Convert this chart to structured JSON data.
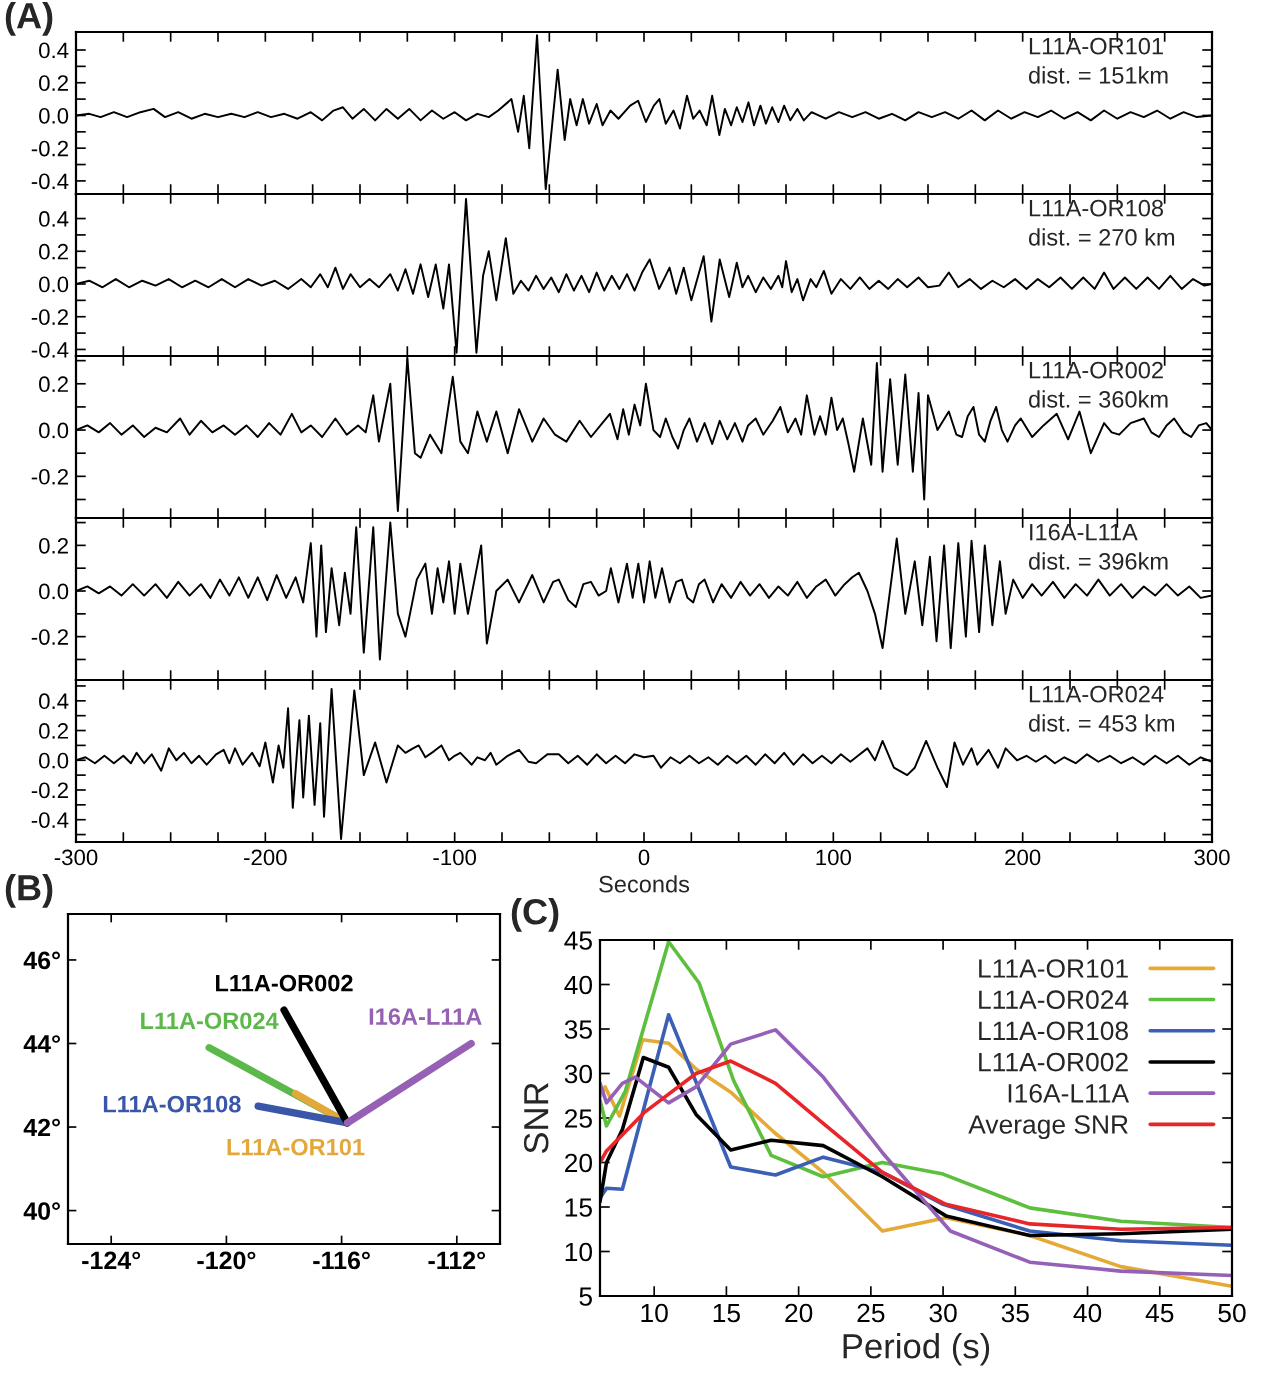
{
  "chart_data": [
    {
      "type": "line",
      "title": "(A)",
      "color": "#000000",
      "xlim": [
        -300,
        300
      ],
      "ylim": [
        -0.48,
        0.51
      ],
      "tick_labels": "y",
      "xticks": [
        -300,
        {
          "value": -275,
          "label": null
        },
        {
          "value": -250,
          "label": null
        },
        {
          "value": -225,
          "label": null
        },
        -200,
        {
          "value": -175,
          "label": null
        },
        {
          "value": -150,
          "label": null
        },
        {
          "value": -125,
          "label": null
        },
        -100,
        {
          "value": -75,
          "label": null
        },
        {
          "value": -50,
          "label": null
        },
        {
          "value": -25,
          "label": null
        },
        0,
        {
          "value": 25,
          "label": null
        },
        {
          "value": 50,
          "label": null
        },
        {
          "value": 75,
          "label": null
        },
        100,
        {
          "value": 125,
          "label": null
        },
        {
          "value": 150,
          "label": null
        },
        {
          "value": 175,
          "label": null
        },
        200,
        {
          "value": 225,
          "label": null
        },
        {
          "value": 250,
          "label": null
        },
        {
          "value": 275,
          "label": null
        },
        300
      ],
      "yticks": [
        -0.4,
        {
          "value": -0.3,
          "label": null
        },
        -0.2,
        {
          "value": -0.1,
          "label": null
        },
        {
          "value": 0,
          "label": "0.0"
        },
        {
          "value": 0.1,
          "label": null
        },
        0.2,
        {
          "value": 0.3,
          "label": null
        },
        0.4
      ],
      "annotations": [
        "L11A-OR101",
        "dist. = 151km"
      ],
      "x": [
        -300,
        -293,
        -287,
        -280,
        -273,
        -266,
        -259,
        -253,
        -246,
        -239,
        -232,
        -225,
        -218,
        -211,
        -204,
        -197,
        -190,
        -183,
        -176,
        -170,
        -164,
        -159,
        -154,
        -148,
        -142,
        -136,
        -130,
        -124,
        -118,
        -112,
        -106,
        -100,
        -94,
        -88,
        -82,
        -77,
        -70,
        -66.5,
        -63.5,
        -60.6,
        -56.5,
        -51.9,
        -45.6,
        -41.9,
        -39,
        -35.6,
        -32.3,
        -29,
        -25,
        -21.9,
        -17.7,
        -13.5,
        -7.3,
        -3.1,
        1,
        5.2,
        8.1,
        11.5,
        15.6,
        19,
        22.7,
        26,
        29.4,
        33.1,
        36,
        39.8,
        42.7,
        46,
        49,
        52,
        55.2,
        58.1,
        61.5,
        64.4,
        67.7,
        71,
        74,
        77.3,
        81,
        84.4,
        88.5,
        96,
        103,
        110,
        117,
        124,
        131,
        138,
        145,
        152,
        159,
        166,
        173,
        180,
        187,
        194,
        201,
        208,
        215,
        222,
        229,
        236,
        243,
        250,
        257,
        264,
        271,
        278,
        285,
        292,
        300
      ],
      "values": [
        0.0,
        0.01,
        -0.01,
        0.02,
        -0.01,
        0.02,
        0.04,
        -0.01,
        0.02,
        -0.02,
        0.01,
        -0.01,
        0.01,
        -0.01,
        0.02,
        -0.01,
        0.01,
        -0.02,
        0.02,
        -0.03,
        0.03,
        0.05,
        -0.02,
        0.04,
        -0.03,
        0.04,
        -0.02,
        0.04,
        -0.03,
        0.03,
        -0.02,
        0.02,
        -0.03,
        0.01,
        -0.01,
        0.03,
        0.1,
        -0.1,
        0.12,
        -0.2,
        0.49,
        -0.45,
        0.28,
        -0.15,
        0.1,
        -0.06,
        0.1,
        -0.05,
        0.07,
        -0.06,
        0.03,
        -0.02,
        0.06,
        0.09,
        -0.04,
        0.06,
        0.1,
        -0.05,
        0.03,
        -0.08,
        0.12,
        -0.02,
        0.03,
        -0.06,
        0.12,
        -0.12,
        0.04,
        -0.06,
        0.05,
        -0.04,
        0.08,
        -0.06,
        0.06,
        -0.05,
        0.05,
        -0.04,
        0.06,
        -0.03,
        0.04,
        -0.03,
        0.02,
        -0.02,
        0.02,
        -0.01,
        0.02,
        -0.02,
        0.01,
        -0.03,
        0.02,
        -0.01,
        0.02,
        -0.02,
        0.03,
        -0.03,
        0.03,
        -0.02,
        0.02,
        -0.01,
        0.03,
        -0.02,
        0.02,
        -0.03,
        0.03,
        -0.02,
        0.02,
        -0.01,
        0.03,
        -0.02,
        0.02,
        -0.01,
        0.0
      ]
    },
    {
      "type": "line",
      "color": "#000000",
      "xlim": [
        -300,
        300
      ],
      "ylim": [
        -0.44,
        0.55
      ],
      "tick_labels": "y",
      "xticks": [
        -300,
        {
          "value": -275,
          "label": null
        },
        {
          "value": -250,
          "label": null
        },
        {
          "value": -225,
          "label": null
        },
        -200,
        {
          "value": -175,
          "label": null
        },
        {
          "value": -150,
          "label": null
        },
        {
          "value": -125,
          "label": null
        },
        -100,
        {
          "value": -75,
          "label": null
        },
        {
          "value": -50,
          "label": null
        },
        {
          "value": -25,
          "label": null
        },
        0,
        {
          "value": 25,
          "label": null
        },
        {
          "value": 50,
          "label": null
        },
        {
          "value": 75,
          "label": null
        },
        100,
        {
          "value": 125,
          "label": null
        },
        {
          "value": 150,
          "label": null
        },
        {
          "value": 175,
          "label": null
        },
        200,
        {
          "value": 225,
          "label": null
        },
        {
          "value": 250,
          "label": null
        },
        {
          "value": 275,
          "label": null
        },
        300
      ],
      "yticks": [
        -0.4,
        {
          "value": -0.3,
          "label": null
        },
        -0.2,
        {
          "value": -0.1,
          "label": null
        },
        {
          "value": 0,
          "label": "0.0"
        },
        {
          "value": 0.1,
          "label": null
        },
        0.2,
        {
          "value": 0.3,
          "label": null
        },
        0.4
      ],
      "annotations": [
        "L11A-OR108",
        "dist. = 270 km"
      ],
      "x": [
        -300,
        -293,
        -286,
        -279,
        -272,
        -265,
        -258,
        -251,
        -244,
        -237,
        -230,
        -223,
        -216,
        -209,
        -202,
        -195,
        -188,
        -181,
        -176,
        -171,
        -167,
        -163,
        -159,
        -155,
        -150,
        -145,
        -140,
        -134,
        -130,
        -126,
        -122,
        -118,
        -114,
        -110,
        -106,
        -103,
        -99,
        -94,
        -88.5,
        -85,
        -82,
        -78,
        -73,
        -69,
        -65,
        -61,
        -57,
        -53,
        -49,
        -45,
        -41,
        -37,
        -33,
        -29,
        -25,
        -21,
        -17,
        -13,
        -9,
        -5,
        -1,
        3,
        8,
        13.5,
        17,
        21,
        25,
        31.5,
        35.6,
        40,
        45,
        49,
        52,
        55,
        59,
        63,
        67,
        71,
        73,
        75,
        78,
        81,
        84,
        88,
        91,
        95,
        99,
        104,
        109,
        114,
        119,
        124,
        129,
        134,
        139,
        145,
        150,
        156,
        161,
        166,
        172,
        178,
        184,
        190,
        196,
        202,
        208,
        214,
        220,
        226,
        232,
        238,
        243,
        248,
        254,
        260,
        266,
        272,
        278,
        284,
        290,
        296,
        300
      ],
      "values": [
        0.0,
        0.02,
        -0.02,
        0.03,
        -0.02,
        0.02,
        -0.01,
        0.03,
        -0.02,
        0.02,
        -0.02,
        0.03,
        -0.02,
        0.03,
        -0.01,
        0.02,
        -0.03,
        0.03,
        -0.02,
        0.06,
        -0.02,
        0.1,
        -0.03,
        0.06,
        -0.02,
        0.03,
        -0.02,
        0.06,
        -0.04,
        0.09,
        -0.06,
        0.12,
        -0.08,
        0.12,
        -0.15,
        0.12,
        -0.42,
        0.52,
        -0.42,
        0.05,
        0.2,
        -0.1,
        0.28,
        -0.06,
        0.02,
        -0.04,
        0.05,
        -0.03,
        0.04,
        -0.05,
        0.06,
        -0.04,
        0.05,
        -0.05,
        0.07,
        -0.04,
        0.05,
        -0.03,
        0.06,
        -0.04,
        0.07,
        0.15,
        -0.03,
        0.1,
        -0.06,
        0.1,
        -0.1,
        0.17,
        -0.23,
        0.15,
        -0.08,
        0.13,
        -0.02,
        0.05,
        -0.05,
        0.04,
        -0.03,
        0.05,
        -0.02,
        0.14,
        -0.05,
        0.03,
        -0.1,
        0.03,
        -0.02,
        0.08,
        -0.06,
        0.03,
        -0.03,
        0.04,
        -0.03,
        0.02,
        -0.03,
        0.03,
        -0.02,
        0.04,
        -0.02,
        -0.01,
        0.07,
        -0.02,
        0.03,
        -0.03,
        0.02,
        -0.02,
        0.03,
        -0.03,
        0.03,
        -0.02,
        0.04,
        -0.03,
        0.04,
        -0.03,
        0.07,
        -0.03,
        0.04,
        -0.03,
        0.04,
        -0.03,
        0.05,
        -0.03,
        0.03,
        -0.01,
        0.0
      ]
    },
    {
      "type": "line",
      "color": "#000000",
      "xlim": [
        -300,
        300
      ],
      "ylim": [
        -0.38,
        0.32
      ],
      "tick_labels": "y",
      "xticks": [
        -300,
        {
          "value": -275,
          "label": null
        },
        {
          "value": -250,
          "label": null
        },
        {
          "value": -225,
          "label": null
        },
        -200,
        {
          "value": -175,
          "label": null
        },
        {
          "value": -150,
          "label": null
        },
        {
          "value": -125,
          "label": null
        },
        -100,
        {
          "value": -75,
          "label": null
        },
        {
          "value": -50,
          "label": null
        },
        {
          "value": -25,
          "label": null
        },
        0,
        {
          "value": 25,
          "label": null
        },
        {
          "value": 50,
          "label": null
        },
        {
          "value": 75,
          "label": null
        },
        100,
        {
          "value": 125,
          "label": null
        },
        {
          "value": 150,
          "label": null
        },
        {
          "value": 175,
          "label": null
        },
        200,
        {
          "value": 225,
          "label": null
        },
        {
          "value": 250,
          "label": null
        },
        {
          "value": 275,
          "label": null
        },
        300
      ],
      "yticks": [
        {
          "value": -0.3,
          "label": null
        },
        -0.2,
        {
          "value": -0.1,
          "label": null
        },
        {
          "value": 0,
          "label": "0.0"
        },
        {
          "value": 0.1,
          "label": null
        },
        0.2,
        {
          "value": 0.3,
          "label": null
        }
      ],
      "annotations": [
        "L11A-OR002",
        "dist. = 360km"
      ],
      "x": [
        -300,
        -294,
        -288,
        -282,
        -276,
        -270,
        -264,
        -258,
        -252,
        -245,
        -240,
        -234,
        -228,
        -222,
        -216,
        -210,
        -204,
        -198,
        -192,
        -186,
        -181,
        -176,
        -170,
        -163,
        -157,
        -151,
        -147,
        -143,
        -140,
        -134,
        -130,
        -125,
        -121,
        -118,
        -113,
        -107,
        -101,
        -97,
        -93,
        -88,
        -83,
        -78,
        -72,
        -66,
        -59,
        -53,
        -47,
        -41,
        -34,
        -28,
        -23,
        -18,
        -14,
        -11,
        -8,
        -5,
        -2,
        1,
        5,
        8.5,
        11.5,
        15,
        18,
        21,
        24,
        28,
        32,
        36,
        40,
        44,
        48,
        52,
        55,
        59,
        63,
        68,
        72,
        76,
        80,
        83,
        86,
        90,
        93,
        96,
        99,
        102,
        105,
        108,
        111,
        115.6,
        120,
        123,
        126,
        130,
        134,
        138,
        142,
        145,
        148,
        150,
        155,
        161,
        165,
        168,
        171,
        174,
        177,
        180,
        183,
        186,
        189,
        192,
        196,
        199,
        205,
        211,
        218,
        224,
        230,
        236,
        243,
        247,
        251,
        257,
        264,
        268,
        272,
        276,
        280,
        285,
        289,
        293,
        297,
        300
      ],
      "values": [
        0.0,
        0.02,
        -0.01,
        0.03,
        -0.02,
        0.02,
        -0.03,
        0.01,
        -0.01,
        0.05,
        -0.02,
        0.04,
        -0.01,
        0.02,
        -0.02,
        0.02,
        -0.03,
        0.03,
        -0.02,
        0.07,
        -0.01,
        0.02,
        -0.03,
        0.05,
        -0.02,
        0.02,
        -0.01,
        0.15,
        -0.05,
        0.2,
        -0.35,
        0.31,
        -0.1,
        -0.12,
        -0.02,
        -0.1,
        0.23,
        -0.05,
        -0.1,
        0.08,
        -0.05,
        0.08,
        -0.1,
        0.09,
        -0.05,
        0.05,
        -0.02,
        -0.05,
        0.04,
        -0.03,
        0.02,
        0.07,
        -0.04,
        0.09,
        -0.02,
        0.11,
        0.02,
        0.2,
        0.0,
        -0.03,
        0.05,
        -0.03,
        -0.08,
        0.0,
        0.05,
        -0.05,
        0.03,
        -0.06,
        0.04,
        -0.04,
        0.03,
        -0.05,
        0.02,
        0.05,
        -0.02,
        0.04,
        0.1,
        -0.01,
        0.05,
        -0.02,
        0.15,
        -0.02,
        0.06,
        -0.02,
        0.14,
        0.0,
        0.05,
        -0.06,
        -0.18,
        0.05,
        -0.15,
        0.29,
        -0.18,
        0.22,
        -0.15,
        0.24,
        -0.18,
        0.16,
        -0.3,
        0.15,
        0.0,
        0.08,
        -0.02,
        -0.03,
        0.06,
        0.1,
        -0.02,
        -0.05,
        0.04,
        0.1,
        0.0,
        -0.05,
        0.02,
        0.05,
        -0.03,
        0.02,
        0.07,
        -0.04,
        0.08,
        -0.1,
        0.03,
        -0.01,
        -0.02,
        0.03,
        0.05,
        -0.01,
        -0.03,
        0.02,
        0.05,
        -0.01,
        -0.03,
        0.02,
        0.03,
        0.0
      ]
    },
    {
      "type": "line",
      "color": "#000000",
      "xlim": [
        -300,
        300
      ],
      "ylim": [
        -0.39,
        0.32
      ],
      "tick_labels": "y",
      "xticks": [
        -300,
        {
          "value": -275,
          "label": null
        },
        {
          "value": -250,
          "label": null
        },
        {
          "value": -225,
          "label": null
        },
        -200,
        {
          "value": -175,
          "label": null
        },
        {
          "value": -150,
          "label": null
        },
        {
          "value": -125,
          "label": null
        },
        -100,
        {
          "value": -75,
          "label": null
        },
        {
          "value": -50,
          "label": null
        },
        {
          "value": -25,
          "label": null
        },
        0,
        {
          "value": 25,
          "label": null
        },
        {
          "value": 50,
          "label": null
        },
        {
          "value": 75,
          "label": null
        },
        100,
        {
          "value": 125,
          "label": null
        },
        {
          "value": 150,
          "label": null
        },
        {
          "value": 175,
          "label": null
        },
        200,
        {
          "value": 225,
          "label": null
        },
        {
          "value": 250,
          "label": null
        },
        {
          "value": 275,
          "label": null
        },
        300
      ],
      "yticks": [
        {
          "value": -0.3,
          "label": null
        },
        -0.2,
        {
          "value": -0.1,
          "label": null
        },
        {
          "value": 0,
          "label": "0.0"
        },
        {
          "value": 0.1,
          "label": null
        },
        0.2,
        {
          "value": 0.3,
          "label": null
        }
      ],
      "annotations": [
        "I16A-L11A",
        "dist. = 396km"
      ],
      "x": [
        -300,
        -294,
        -288,
        -282,
        -276,
        -270,
        -264,
        -258,
        -252,
        -246,
        -240,
        -234,
        -229,
        -224,
        -219,
        -214,
        -209,
        -204,
        -199,
        -194,
        -189,
        -184,
        -180,
        -176,
        -173,
        -170.5,
        -168,
        -165,
        -161,
        -158,
        -155,
        -152,
        -148,
        -143,
        -139.5,
        -134,
        -130,
        -126,
        -120,
        -115.5,
        -112,
        -109,
        -106,
        -103,
        -100,
        -97,
        -93,
        -86,
        -83,
        -78,
        -72,
        -66,
        -59,
        -53,
        -48,
        -45,
        -40,
        -36,
        -32,
        -28,
        -24,
        -20,
        -17.5,
        -13.5,
        -9,
        -6,
        -3,
        0,
        3,
        6,
        9.5,
        13.5,
        17,
        20,
        23,
        26,
        29,
        32,
        36.5,
        41,
        46,
        51,
        56,
        61,
        66,
        71,
        76,
        81,
        86,
        91,
        96,
        101,
        106,
        110,
        113.5,
        118,
        122,
        126,
        133.5,
        138,
        143,
        147,
        151,
        154.5,
        158.5,
        162,
        166,
        170,
        173,
        177,
        180,
        184,
        188,
        191,
        195,
        200,
        205,
        210,
        216,
        222,
        228,
        234,
        240,
        246,
        252,
        258,
        264,
        270,
        276,
        282,
        288,
        294,
        300
      ],
      "values": [
        0.0,
        0.02,
        -0.01,
        0.02,
        -0.02,
        0.03,
        -0.02,
        0.03,
        -0.03,
        0.04,
        -0.02,
        0.03,
        -0.03,
        0.05,
        -0.02,
        0.06,
        -0.03,
        0.06,
        -0.04,
        0.07,
        -0.03,
        0.06,
        -0.05,
        0.21,
        -0.2,
        0.2,
        -0.18,
        0.1,
        -0.15,
        0.08,
        -0.1,
        0.28,
        -0.27,
        0.28,
        -0.3,
        0.3,
        -0.1,
        -0.2,
        0.05,
        0.12,
        -0.1,
        0.1,
        -0.05,
        0.13,
        -0.1,
        0.12,
        -0.1,
        0.2,
        -0.23,
        0.0,
        0.05,
        -0.05,
        0.07,
        -0.05,
        0.04,
        0.05,
        -0.04,
        -0.07,
        0.03,
        0.04,
        -0.02,
        0.0,
        0.1,
        -0.05,
        0.12,
        -0.03,
        0.12,
        -0.05,
        0.13,
        -0.03,
        0.1,
        -0.05,
        0.04,
        0.05,
        -0.03,
        -0.05,
        0.03,
        0.05,
        -0.05,
        0.03,
        -0.03,
        0.04,
        -0.02,
        0.03,
        -0.03,
        0.02,
        -0.02,
        0.04,
        -0.03,
        0.02,
        0.05,
        -0.02,
        0.03,
        0.06,
        0.08,
        0.0,
        -0.1,
        -0.25,
        0.23,
        -0.1,
        0.13,
        -0.15,
        0.15,
        -0.22,
        0.2,
        -0.25,
        0.21,
        -0.2,
        0.22,
        -0.18,
        0.2,
        -0.15,
        0.13,
        -0.1,
        0.05,
        -0.03,
        0.03,
        -0.02,
        0.04,
        -0.03,
        0.03,
        -0.02,
        0.05,
        -0.02,
        0.03,
        -0.03,
        0.02,
        -0.02,
        0.03,
        -0.02,
        0.02,
        -0.03,
        -0.02
      ]
    },
    {
      "type": "line",
      "color": "#000000",
      "xlim": [
        -300,
        300
      ],
      "ylim": [
        -0.55,
        0.54
      ],
      "xlabel": "Seconds",
      "xticks": [
        -300,
        {
          "value": -275,
          "label": null
        },
        {
          "value": -250,
          "label": null
        },
        {
          "value": -225,
          "label": null
        },
        -200,
        {
          "value": -175,
          "label": null
        },
        {
          "value": -150,
          "label": null
        },
        {
          "value": -125,
          "label": null
        },
        -100,
        {
          "value": -75,
          "label": null
        },
        {
          "value": -50,
          "label": null
        },
        {
          "value": -25,
          "label": null
        },
        0,
        {
          "value": 25,
          "label": null
        },
        {
          "value": 50,
          "label": null
        },
        {
          "value": 75,
          "label": null
        },
        100,
        {
          "value": 125,
          "label": null
        },
        {
          "value": 150,
          "label": null
        },
        {
          "value": 175,
          "label": null
        },
        200,
        {
          "value": 225,
          "label": null
        },
        {
          "value": 250,
          "label": null
        },
        {
          "value": 275,
          "label": null
        },
        300
      ],
      "yticks": [
        {
          "value": -0.5,
          "label": null
        },
        -0.4,
        {
          "value": -0.3,
          "label": null
        },
        -0.2,
        {
          "value": -0.1,
          "label": null
        },
        {
          "value": 0,
          "label": "0.0"
        },
        {
          "value": 0.1,
          "label": null
        },
        0.2,
        {
          "value": 0.3,
          "label": null
        },
        0.4,
        {
          "value": 0.5,
          "label": null
        }
      ],
      "annotations": [
        "L11A-OR024",
        "dist. = 453 km"
      ],
      "x": [
        -300,
        -295,
        -290,
        -285,
        -280,
        -275,
        -271,
        -268,
        -264,
        -260,
        -255,
        -251,
        -247,
        -243,
        -239,
        -235,
        -231,
        -226,
        -222,
        -219,
        -216,
        -212,
        -207,
        -203,
        -200,
        -196,
        -193,
        -190.5,
        -188,
        -185.5,
        -182,
        -180,
        -177,
        -174,
        -171,
        -169,
        -165,
        -160,
        -153,
        -148,
        -142,
        -136,
        -130,
        -126,
        -122,
        -119,
        -115.5,
        -111,
        -107,
        -103,
        -100,
        -97,
        -91,
        -88,
        -84,
        -81,
        -78,
        -72,
        -66,
        -61,
        -57,
        -51,
        -45,
        -40,
        -35,
        -30,
        -25,
        -20,
        -15,
        -10,
        -5,
        0,
        5,
        9,
        14,
        19,
        24,
        29,
        34,
        39,
        44,
        49,
        54,
        59,
        64,
        69,
        74,
        79,
        84,
        89,
        94,
        99,
        104,
        109,
        113,
        118,
        122,
        126,
        132,
        139,
        143,
        149,
        155,
        160,
        164,
        168.5,
        173,
        176,
        182,
        187,
        191,
        197,
        202,
        207,
        212,
        217,
        222,
        228,
        234,
        240,
        246,
        252,
        258,
        264,
        270,
        276,
        282,
        288,
        294,
        300
      ],
      "values": [
        0.0,
        0.02,
        -0.02,
        0.03,
        -0.02,
        0.03,
        -0.02,
        0.05,
        -0.02,
        0.04,
        -0.07,
        0.08,
        0.0,
        0.05,
        -0.02,
        0.03,
        -0.03,
        0.04,
        0.07,
        -0.02,
        0.08,
        -0.03,
        0.05,
        -0.04,
        0.12,
        -0.15,
        0.1,
        -0.05,
        0.35,
        -0.32,
        0.27,
        -0.25,
        0.3,
        -0.3,
        0.25,
        -0.38,
        0.48,
        -0.53,
        0.47,
        -0.1,
        0.12,
        -0.15,
        0.1,
        0.05,
        0.08,
        0.1,
        0.02,
        0.06,
        0.1,
        0.0,
        0.03,
        0.05,
        -0.03,
        0.02,
        0.0,
        0.05,
        -0.03,
        0.03,
        0.07,
        -0.01,
        -0.02,
        0.04,
        0.04,
        -0.02,
        0.03,
        -0.03,
        0.04,
        -0.02,
        0.03,
        -0.02,
        0.04,
        0.02,
        0.03,
        -0.05,
        0.02,
        -0.02,
        0.03,
        -0.02,
        0.02,
        -0.03,
        0.03,
        -0.02,
        0.03,
        -0.03,
        0.04,
        -0.02,
        0.05,
        -0.03,
        0.04,
        -0.02,
        0.03,
        -0.02,
        0.04,
        -0.01,
        0.03,
        0.08,
        0.0,
        0.13,
        -0.05,
        -0.1,
        -0.05,
        0.13,
        -0.05,
        -0.18,
        0.12,
        -0.03,
        0.08,
        -0.03,
        0.07,
        -0.05,
        0.08,
        0.0,
        0.03,
        -0.01,
        0.03,
        -0.02,
        0.02,
        -0.02,
        0.04,
        -0.01,
        0.03,
        -0.02,
        0.02,
        -0.03,
        0.03,
        -0.02,
        0.03,
        -0.03,
        0.02,
        -0.01
      ]
    },
    {
      "type": "line",
      "title": "(B)",
      "xlim": [
        -125.5,
        -110.5
      ],
      "ylim": [
        39.2,
        47.1
      ],
      "xticks": [
        {
          "value": -124,
          "label": "-124°"
        },
        {
          "value": -120,
          "label": "-120°"
        },
        {
          "value": -116,
          "label": "-116°"
        },
        {
          "value": -112,
          "label": "-112°"
        }
      ],
      "yticks": [
        {
          "value": 40,
          "label": "40°"
        },
        {
          "value": 42,
          "label": "42°"
        },
        {
          "value": 44,
          "label": "44°"
        },
        {
          "value": 46,
          "label": "46°"
        }
      ],
      "series": [
        {
          "name": "L11A-OR024",
          "color": "#5cb84a",
          "x": [
            -120.6,
            -115.8
          ],
          "values": [
            43.9,
            42.1
          ]
        },
        {
          "name": "L11A-OR101",
          "color": "#e3a83a",
          "x": [
            -117.6,
            -115.8
          ],
          "values": [
            42.8,
            42.1
          ]
        },
        {
          "name": "L11A-OR108",
          "color": "#3a56a8",
          "x": [
            -118.9,
            -115.8
          ],
          "values": [
            42.5,
            42.1
          ]
        },
        {
          "name": "L11A-OR002",
          "color": "#000000",
          "x": [
            -118.0,
            -115.8
          ],
          "values": [
            44.8,
            42.1
          ]
        },
        {
          "name": "I16A-L11A",
          "color": "#9660b4",
          "x": [
            -111.5,
            -115.8
          ],
          "values": [
            44.0,
            42.1
          ]
        }
      ]
    },
    {
      "type": "line",
      "title": "(C)",
      "xlabel": "Period (s)",
      "ylabel": "SNR",
      "xlim": [
        6.25,
        50
      ],
      "ylim": [
        5,
        45
      ],
      "xticks": [
        10,
        15,
        20,
        25,
        30,
        35,
        40,
        45,
        50
      ],
      "yticks": [
        5,
        10,
        15,
        20,
        25,
        30,
        35,
        40,
        45
      ],
      "legend": "top right",
      "series": [
        {
          "name": "L11A-OR101",
          "color": "#e5a935",
          "x": [
            6.25,
            6.6,
            7.6,
            9.2,
            11.0,
            12.9,
            15.3,
            18.3,
            21.7,
            25.8,
            30.2,
            36.0,
            42.3,
            50
          ],
          "values": [
            27.4,
            28.5,
            25.2,
            33.8,
            33.4,
            30.5,
            27.9,
            23.4,
            18.9,
            12.3,
            13.8,
            11.8,
            8.3,
            6.1
          ]
        },
        {
          "name": "L11A-OR024",
          "color": "#5cbf3d",
          "x": [
            6.25,
            6.7,
            8.0,
            11.0,
            13.1,
            15.5,
            18.1,
            21.7,
            25.8,
            30.0,
            36.0,
            42.3,
            50
          ],
          "values": [
            27.0,
            24.1,
            28.0,
            44.8,
            40.2,
            29.2,
            20.8,
            18.4,
            20.0,
            18.7,
            14.9,
            13.4,
            12.7
          ]
        },
        {
          "name": "L11A-OR108",
          "color": "#3a5fb5",
          "x": [
            6.25,
            6.7,
            7.8,
            11.0,
            15.3,
            18.4,
            21.7,
            25.8,
            30.0,
            36.0,
            42.3,
            50
          ],
          "values": [
            16.0,
            17.1,
            17.0,
            36.6,
            19.5,
            18.6,
            20.6,
            18.9,
            15.3,
            12.3,
            11.2,
            10.7
          ]
        },
        {
          "name": "L11A-OR002",
          "color": "#000000",
          "x": [
            6.25,
            6.7,
            7.8,
            9.25,
            11.0,
            12.9,
            15.3,
            18.1,
            21.7,
            25.8,
            30.2,
            36.0,
            42.3,
            50
          ],
          "values": [
            15.6,
            20.0,
            23.7,
            31.8,
            30.7,
            25.4,
            21.4,
            22.5,
            21.9,
            18.4,
            14.0,
            11.8,
            12.0,
            12.5
          ]
        },
        {
          "name": "I16A-L11A",
          "color": "#9460b8",
          "x": [
            6.25,
            6.7,
            7.8,
            8.7,
            11.0,
            12.9,
            15.3,
            18.4,
            21.7,
            25.8,
            30.5,
            36.0,
            42.3,
            50
          ],
          "values": [
            28.9,
            26.7,
            28.9,
            29.6,
            26.7,
            28.5,
            33.3,
            34.9,
            29.6,
            21.1,
            12.3,
            8.8,
            7.8,
            7.3
          ]
        },
        {
          "name": "Average SNR",
          "color": "#e8262a",
          "x": [
            6.25,
            6.7,
            9.3,
            12.9,
            15.3,
            18.4,
            21.7,
            25.8,
            30.2,
            36.0,
            42.3,
            50
          ],
          "values": [
            20.0,
            21.3,
            25.6,
            30.0,
            31.4,
            28.9,
            24.4,
            18.9,
            15.3,
            13.1,
            12.5,
            12.7
          ]
        }
      ]
    }
  ]
}
